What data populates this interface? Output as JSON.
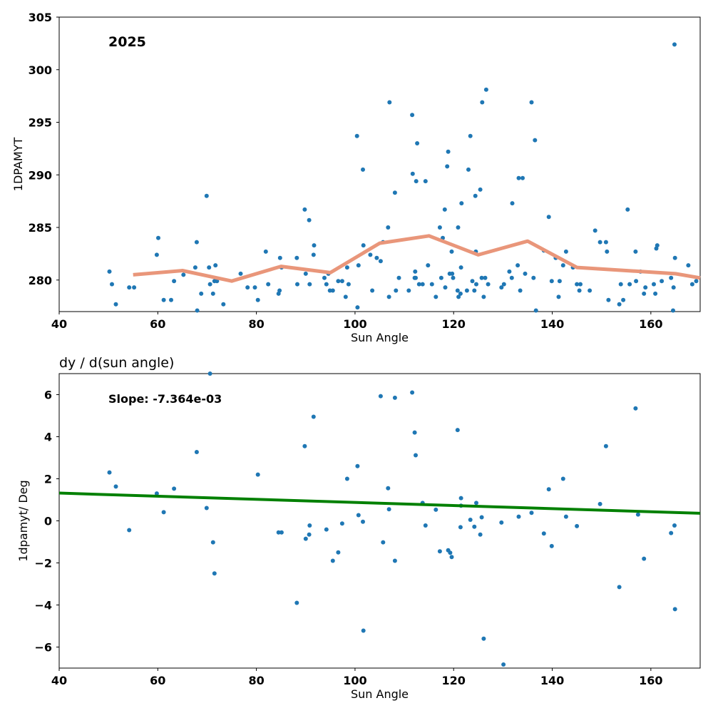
{
  "chart_data": [
    {
      "type": "scatter",
      "annotation": "2025",
      "xlabel": "Sun Angle",
      "ylabel": "1DPAMYT",
      "xlim": [
        40,
        170
      ],
      "ylim": [
        277,
        305
      ],
      "xticks": [
        40,
        60,
        80,
        100,
        120,
        140,
        160
      ],
      "yticks": [
        280,
        285,
        290,
        295,
        300,
        305
      ],
      "grid": false,
      "colors": {
        "points": "#1f77b4",
        "trend": "#e9967a"
      },
      "points": [
        [
          50.2,
          280.8
        ],
        [
          50.7,
          279.6
        ],
        [
          51.5,
          277.7
        ],
        [
          54.2,
          279.3
        ],
        [
          55.2,
          279.3
        ],
        [
          59.8,
          282.4
        ],
        [
          60.1,
          284.0
        ],
        [
          61.2,
          278.1
        ],
        [
          62.7,
          278.1
        ],
        [
          63.3,
          279.9
        ],
        [
          65.2,
          280.5
        ],
        [
          67.6,
          281.2
        ],
        [
          67.9,
          283.6
        ],
        [
          68.0,
          277.1
        ],
        [
          68.8,
          278.7
        ],
        [
          69.9,
          288.0
        ],
        [
          70.4,
          281.2
        ],
        [
          70.6,
          279.6
        ],
        [
          71.2,
          278.7
        ],
        [
          71.5,
          279.9
        ],
        [
          71.7,
          281.4
        ],
        [
          72.0,
          279.9
        ],
        [
          73.3,
          277.7
        ],
        [
          76.8,
          280.6
        ],
        [
          78.2,
          279.3
        ],
        [
          79.7,
          279.3
        ],
        [
          80.3,
          278.1
        ],
        [
          81.9,
          282.7
        ],
        [
          82.4,
          279.6
        ],
        [
          84.5,
          278.7
        ],
        [
          84.7,
          279.0
        ],
        [
          84.8,
          282.1
        ],
        [
          85.1,
          281.2
        ],
        [
          88.2,
          282.1
        ],
        [
          88.3,
          279.6
        ],
        [
          89.8,
          286.7
        ],
        [
          90.0,
          280.6
        ],
        [
          90.7,
          285.7
        ],
        [
          90.8,
          279.6
        ],
        [
          91.6,
          282.4
        ],
        [
          91.7,
          283.3
        ],
        [
          93.8,
          280.2
        ],
        [
          94.2,
          279.6
        ],
        [
          94.6,
          280.6
        ],
        [
          94.9,
          279.0
        ],
        [
          95.5,
          279.0
        ],
        [
          96.6,
          279.9
        ],
        [
          97.4,
          279.9
        ],
        [
          98.1,
          278.4
        ],
        [
          98.4,
          281.2
        ],
        [
          98.7,
          279.6
        ],
        [
          100.4,
          293.7
        ],
        [
          100.5,
          277.4
        ],
        [
          100.7,
          281.4
        ],
        [
          101.6,
          290.5
        ],
        [
          101.7,
          283.3
        ],
        [
          103.1,
          282.4
        ],
        [
          103.5,
          279.0
        ],
        [
          104.4,
          282.1
        ],
        [
          105.2,
          281.8
        ],
        [
          105.7,
          283.6
        ],
        [
          106.7,
          285.0
        ],
        [
          106.9,
          278.4
        ],
        [
          107.0,
          296.9
        ],
        [
          108.1,
          288.3
        ],
        [
          108.3,
          279.0
        ],
        [
          108.9,
          280.2
        ],
        [
          110.9,
          279.0
        ],
        [
          111.6,
          295.7
        ],
        [
          111.7,
          290.1
        ],
        [
          112.1,
          280.2
        ],
        [
          112.2,
          280.8
        ],
        [
          112.3,
          280.2
        ],
        [
          112.4,
          289.4
        ],
        [
          112.6,
          293.0
        ],
        [
          113.0,
          279.6
        ],
        [
          113.7,
          279.6
        ],
        [
          114.3,
          289.4
        ],
        [
          114.8,
          281.4
        ],
        [
          115.6,
          279.6
        ],
        [
          116.4,
          278.4
        ],
        [
          117.2,
          285.0
        ],
        [
          117.5,
          280.2
        ],
        [
          117.8,
          284.0
        ],
        [
          118.2,
          286.7
        ],
        [
          118.3,
          279.3
        ],
        [
          118.7,
          290.8
        ],
        [
          118.9,
          292.2
        ],
        [
          119.2,
          280.6
        ],
        [
          119.6,
          282.7
        ],
        [
          119.7,
          280.6
        ],
        [
          119.9,
          280.2
        ],
        [
          120.8,
          279.0
        ],
        [
          120.9,
          285.0
        ],
        [
          121.0,
          278.4
        ],
        [
          121.4,
          278.7
        ],
        [
          121.5,
          281.2
        ],
        [
          121.6,
          287.3
        ],
        [
          122.7,
          279.0
        ],
        [
          123.0,
          290.5
        ],
        [
          123.4,
          293.7
        ],
        [
          123.8,
          279.9
        ],
        [
          124.2,
          279.0
        ],
        [
          124.4,
          288.0
        ],
        [
          124.5,
          282.7
        ],
        [
          124.6,
          279.6
        ],
        [
          125.4,
          288.6
        ],
        [
          125.7,
          280.2
        ],
        [
          125.8,
          296.9
        ],
        [
          126.1,
          278.4
        ],
        [
          126.4,
          280.2
        ],
        [
          126.6,
          298.1
        ],
        [
          127.0,
          279.6
        ],
        [
          129.7,
          279.3
        ],
        [
          130.2,
          279.6
        ],
        [
          131.3,
          280.8
        ],
        [
          131.8,
          280.2
        ],
        [
          131.9,
          287.3
        ],
        [
          133.0,
          281.4
        ],
        [
          133.2,
          289.7
        ],
        [
          133.5,
          279.0
        ],
        [
          134.0,
          289.7
        ],
        [
          134.5,
          280.6
        ],
        [
          135.8,
          296.9
        ],
        [
          136.2,
          280.2
        ],
        [
          136.5,
          293.3
        ],
        [
          136.7,
          277.1
        ],
        [
          138.3,
          282.8
        ],
        [
          139.3,
          286.0
        ],
        [
          139.9,
          279.9
        ],
        [
          140.7,
          282.1
        ],
        [
          141.3,
          278.4
        ],
        [
          141.5,
          279.9
        ],
        [
          142.2,
          281.4
        ],
        [
          142.8,
          282.7
        ],
        [
          144.2,
          281.2
        ],
        [
          145.0,
          279.6
        ],
        [
          145.5,
          279.0
        ],
        [
          145.7,
          279.6
        ],
        [
          147.6,
          279.0
        ],
        [
          148.7,
          284.7
        ],
        [
          149.7,
          283.6
        ],
        [
          150.9,
          283.6
        ],
        [
          151.1,
          282.7
        ],
        [
          151.4,
          278.1
        ],
        [
          153.6,
          277.7
        ],
        [
          153.9,
          279.6
        ],
        [
          154.4,
          278.1
        ],
        [
          155.3,
          286.7
        ],
        [
          155.7,
          279.6
        ],
        [
          156.9,
          282.7
        ],
        [
          157.0,
          279.9
        ],
        [
          157.9,
          280.8
        ],
        [
          158.6,
          278.7
        ],
        [
          158.9,
          279.3
        ],
        [
          160.6,
          279.6
        ],
        [
          160.9,
          278.7
        ],
        [
          161.1,
          283.0
        ],
        [
          161.3,
          283.3
        ],
        [
          162.2,
          279.9
        ],
        [
          164.1,
          280.2
        ],
        [
          164.5,
          277.1
        ],
        [
          164.6,
          279.3
        ],
        [
          164.8,
          302.4
        ],
        [
          164.9,
          282.1
        ],
        [
          167.6,
          281.4
        ],
        [
          168.4,
          279.6
        ],
        [
          169.2,
          279.9
        ]
      ],
      "trend": [
        [
          55,
          280.5
        ],
        [
          65,
          280.9
        ],
        [
          75,
          279.9
        ],
        [
          85,
          281.3
        ],
        [
          95,
          280.7
        ],
        [
          105,
          283.5
        ],
        [
          115,
          284.2
        ],
        [
          125,
          282.4
        ],
        [
          135,
          283.7
        ],
        [
          145,
          281.2
        ],
        [
          155,
          280.9
        ],
        [
          165,
          280.6
        ],
        [
          170,
          280.2
        ]
      ]
    },
    {
      "type": "scatter",
      "title": "dy / d(sun angle)",
      "annotation": "Slope: -7.364e-03",
      "xlabel": "Sun Angle",
      "ylabel": "1dpamyt/ Deg",
      "xlim": [
        40,
        170
      ],
      "ylim": [
        -7,
        7
      ],
      "xticks": [
        40,
        60,
        80,
        100,
        120,
        140,
        160
      ],
      "yticks": [
        -6,
        -4,
        -2,
        0,
        2,
        4,
        6
      ],
      "grid": false,
      "colors": {
        "points": "#1f77b4",
        "fit": "#008000"
      },
      "points": [
        [
          50.2,
          2.3
        ],
        [
          51.5,
          1.63
        ],
        [
          54.2,
          -0.44
        ],
        [
          59.8,
          1.3
        ],
        [
          61.2,
          0.41
        ],
        [
          63.3,
          1.53
        ],
        [
          67.9,
          3.27
        ],
        [
          69.9,
          0.61
        ],
        [
          71.2,
          -1.02
        ],
        [
          71.5,
          -2.5
        ],
        [
          70.6,
          7.0
        ],
        [
          80.3,
          2.2
        ],
        [
          84.5,
          -0.55
        ],
        [
          85.1,
          -0.55
        ],
        [
          88.2,
          -3.9
        ],
        [
          89.8,
          3.55
        ],
        [
          90.0,
          -0.85
        ],
        [
          90.7,
          -0.65
        ],
        [
          90.8,
          -0.22
        ],
        [
          91.6,
          4.95
        ],
        [
          94.2,
          -0.41
        ],
        [
          95.5,
          -1.9
        ],
        [
          96.6,
          -1.5
        ],
        [
          97.4,
          -0.13
        ],
        [
          98.4,
          2.0
        ],
        [
          100.5,
          2.6
        ],
        [
          100.7,
          0.27
        ],
        [
          101.6,
          -0.04
        ],
        [
          101.7,
          -5.22
        ],
        [
          105.2,
          5.93
        ],
        [
          105.7,
          -1.02
        ],
        [
          106.7,
          1.55
        ],
        [
          106.9,
          0.55
        ],
        [
          108.1,
          5.85
        ],
        [
          108.1,
          -1.9
        ],
        [
          111.6,
          6.1
        ],
        [
          112.1,
          4.2
        ],
        [
          112.3,
          3.12
        ],
        [
          113.7,
          0.85
        ],
        [
          114.3,
          -0.22
        ],
        [
          116.4,
          0.53
        ],
        [
          117.2,
          -1.45
        ],
        [
          118.9,
          -1.4
        ],
        [
          119.3,
          -1.52
        ],
        [
          119.6,
          -1.72
        ],
        [
          120.8,
          4.32
        ],
        [
          121.5,
          1.08
        ],
        [
          121.5,
          0.72
        ],
        [
          121.4,
          -0.3
        ],
        [
          123.4,
          0.05
        ],
        [
          124.2,
          -0.28
        ],
        [
          124.6,
          0.85
        ],
        [
          125.4,
          -0.65
        ],
        [
          125.7,
          0.17
        ],
        [
          126.1,
          -5.6
        ],
        [
          129.7,
          -0.08
        ],
        [
          130.1,
          -6.83
        ],
        [
          133.2,
          0.2
        ],
        [
          135.8,
          0.38
        ],
        [
          138.3,
          -0.6
        ],
        [
          139.3,
          1.5
        ],
        [
          139.9,
          -1.2
        ],
        [
          142.2,
          2.0
        ],
        [
          142.8,
          0.2
        ],
        [
          145.0,
          -0.25
        ],
        [
          149.7,
          0.8
        ],
        [
          150.9,
          3.55
        ],
        [
          153.6,
          -3.15
        ],
        [
          156.9,
          5.35
        ],
        [
          157.4,
          0.3
        ],
        [
          158.6,
          -1.8
        ],
        [
          164.1,
          -0.58
        ],
        [
          164.8,
          -0.22
        ],
        [
          164.9,
          -4.2
        ]
      ],
      "fit": [
        [
          40,
          1.32
        ],
        [
          170,
          0.36
        ]
      ]
    }
  ]
}
